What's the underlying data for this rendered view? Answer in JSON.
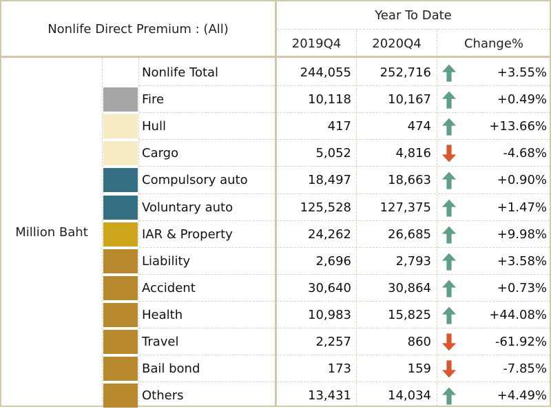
{
  "header": {
    "title": "Nonlife Direct Premium : (All)",
    "group": "Year To Date",
    "col_prev": "2019Q4",
    "col_curr": "2020Q4",
    "col_change": "Change%"
  },
  "unit_label": "Million Baht",
  "colors": {
    "border": "#d2c9a6",
    "up_arrow": "#5f9f86",
    "down_arrow": "#d9572e"
  },
  "rows": [
    {
      "label": "Nonlife Total",
      "prev": "244,055",
      "curr": "252,716",
      "trend": "up",
      "change": "+3.55%",
      "swatch": "#ffffff"
    },
    {
      "label": "Fire",
      "prev": "10,118",
      "curr": "10,167",
      "trend": "up",
      "change": "+0.49%",
      "swatch": "#a6a6a6"
    },
    {
      "label": "Hull",
      "prev": "417",
      "curr": "474",
      "trend": "up",
      "change": "+13.66%",
      "swatch": "#f7ebc3"
    },
    {
      "label": "Cargo",
      "prev": "5,052",
      "curr": "4,816",
      "trend": "down",
      "change": "-4.68%",
      "swatch": "#f7ebc3"
    },
    {
      "label": "Compulsory auto",
      "prev": "18,497",
      "curr": "18,663",
      "trend": "up",
      "change": "+0.90%",
      "swatch": "#356f84"
    },
    {
      "label": "Voluntary auto",
      "prev": "125,528",
      "curr": "127,375",
      "trend": "up",
      "change": "+1.47%",
      "swatch": "#356f84"
    },
    {
      "label": "IAR & Property",
      "prev": "24,262",
      "curr": "26,685",
      "trend": "up",
      "change": "+9.98%",
      "swatch": "#cca51a"
    },
    {
      "label": "Liability",
      "prev": "2,696",
      "curr": "2,793",
      "trend": "up",
      "change": "+3.58%",
      "swatch": "#b8882e"
    },
    {
      "label": "Accident",
      "prev": "30,640",
      "curr": "30,864",
      "trend": "up",
      "change": "+0.73%",
      "swatch": "#b8882e"
    },
    {
      "label": "Health",
      "prev": "10,983",
      "curr": "15,825",
      "trend": "up",
      "change": "+44.08%",
      "swatch": "#b8882e"
    },
    {
      "label": "Travel",
      "prev": "2,257",
      "curr": "860",
      "trend": "down",
      "change": "-61.92%",
      "swatch": "#b8882e"
    },
    {
      "label": "Bail bond",
      "prev": "173",
      "curr": "159",
      "trend": "down",
      "change": "-7.85%",
      "swatch": "#b8882e"
    },
    {
      "label": "Others",
      "prev": "13,431",
      "curr": "14,034",
      "trend": "up",
      "change": "+4.49%",
      "swatch": "#b8882e"
    }
  ]
}
